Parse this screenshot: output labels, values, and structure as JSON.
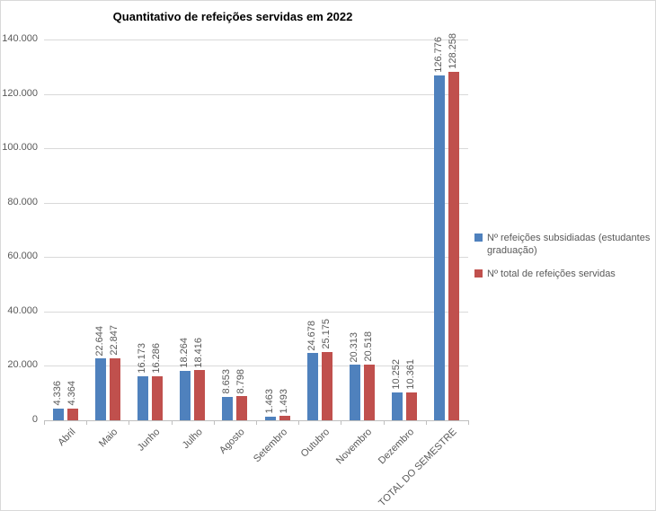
{
  "title": "Quantitativo de refeições servidas em 2022",
  "chart_data": {
    "type": "bar",
    "title": "Quantitativo de refeições servidas em 2022",
    "categories": [
      "Abril",
      "Maio",
      "Junho",
      "Julho",
      "Agosto",
      "Setembro",
      "Outubro",
      "Novembro",
      "Dezembro",
      "TOTAL DO SEMESTRE"
    ],
    "series": [
      {
        "name": "Nº refeições subsidiadas (estudantes graduação)",
        "color": "#4F81BD",
        "values": [
          4336,
          22644,
          16173,
          18264,
          8653,
          1463,
          24678,
          20313,
          10252,
          126776
        ],
        "labels": [
          "4.336",
          "22.644",
          "16.173",
          "18.264",
          "8.653",
          "1.463",
          "24.678",
          "20.313",
          "10.252",
          "126.776"
        ]
      },
      {
        "name": "Nº total de refeições servidas",
        "color": "#C0504D",
        "values": [
          4364,
          22847,
          16286,
          18416,
          8798,
          1493,
          25175,
          20518,
          10361,
          128258
        ],
        "labels": [
          "4.364",
          "22.847",
          "16.286",
          "18.416",
          "8.798",
          "1.493",
          "25.175",
          "20.518",
          "10.361",
          "128.258"
        ]
      }
    ],
    "xlabel": "",
    "ylabel": "",
    "ylim": [
      0,
      140000
    ],
    "ytick_step": 20000,
    "ytick_labels": [
      "0",
      "20.000",
      "40.000",
      "60.000",
      "80.000",
      "100.000",
      "120.000",
      "140.000"
    ],
    "grid": true,
    "legend_position": "right"
  },
  "colors": {
    "series1": "#4F81BD",
    "series2": "#C0504D",
    "gridline": "#D9D9D9",
    "axis_line": "#BFBFBF",
    "label_text": "#595959",
    "title_text": "#000000",
    "frame_border": "#D9D9D9",
    "background": "#FFFFFF"
  }
}
